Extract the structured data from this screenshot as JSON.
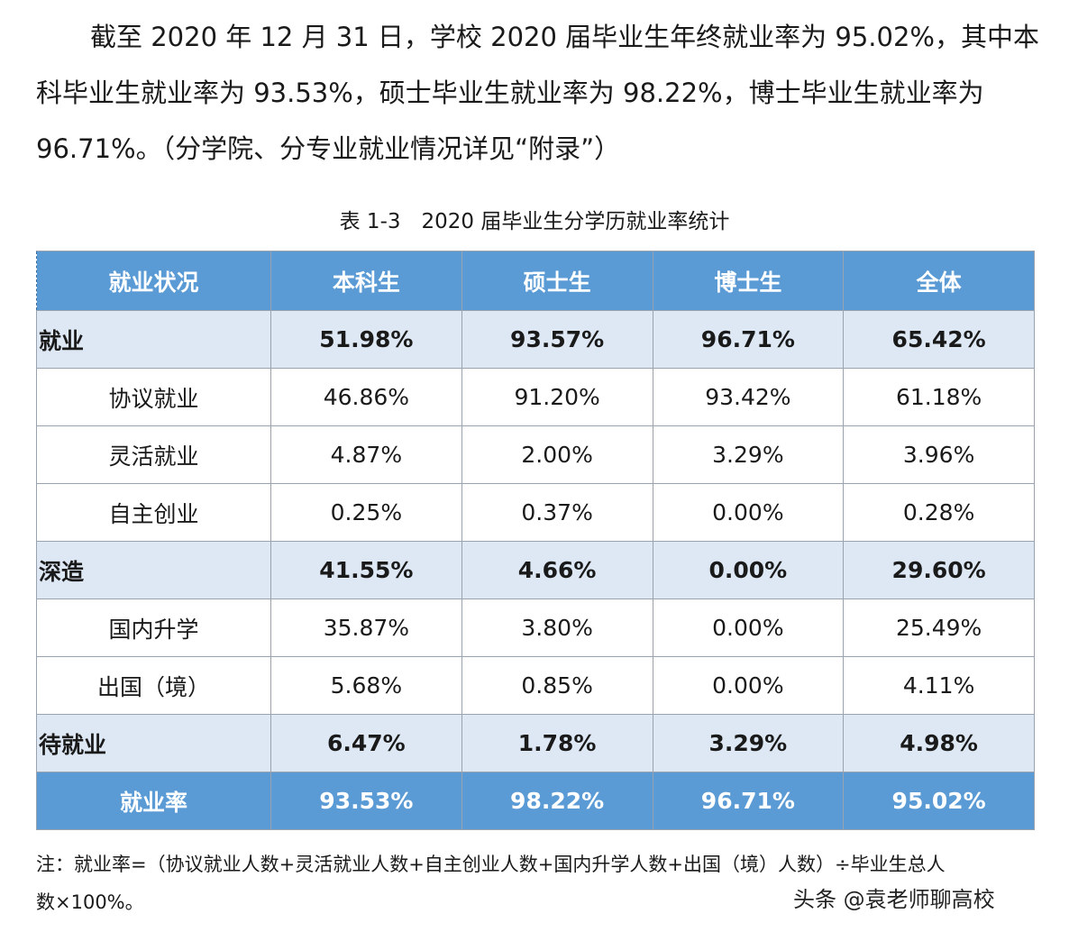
{
  "paragraph": [
    "截至 2020 年 12 月 31 日，学校 2020 届毕业生年终就业率为 95.02%，其中本",
    "科毕业生就业率为 93.53%，硕士毕业生就业率为 98.22%，博士毕业生就业率为",
    "96.71%。（分学院、分专业就业情况详见“附录”）"
  ],
  "caption": "表 1-3　2020 届毕业生分学历就业率统计",
  "table": {
    "header": [
      "就业状况",
      "本科生",
      "硕士生",
      "博士生",
      "全体"
    ],
    "rows": [
      [
        "就业",
        "51.98%",
        "93.57%",
        "96.71%",
        "65.42%"
      ],
      [
        "协议就业",
        "46.86%",
        "91.20%",
        "93.42%",
        "61.18%"
      ],
      [
        "灵活就业",
        "4.87%",
        "2.00%",
        "3.29%",
        "3.96%"
      ],
      [
        "自主创业",
        "0.25%",
        "0.37%",
        "0.00%",
        "0.28%"
      ],
      [
        "深造",
        "41.55%",
        "4.66%",
        "0.00%",
        "29.60%"
      ],
      [
        "国内升学",
        "35.87%",
        "3.80%",
        "0.00%",
        "25.49%"
      ],
      [
        "出国（境）",
        "5.68%",
        "0.85%",
        "0.00%",
        "4.11%"
      ],
      [
        "待就业",
        "6.47%",
        "1.78%",
        "3.29%",
        "4.98%"
      ]
    ],
    "footer": [
      "就业率",
      "93.53%",
      "98.22%",
      "96.71%",
      "95.02%"
    ]
  },
  "note": [
    "注：就业率=（协议就业人数+灵活就业人数+自主创业人数+国内升学人数+出国（境）人数）÷毕业生总人",
    "数×100%。"
  ],
  "watermark": "头条 @袁老师聊高校"
}
